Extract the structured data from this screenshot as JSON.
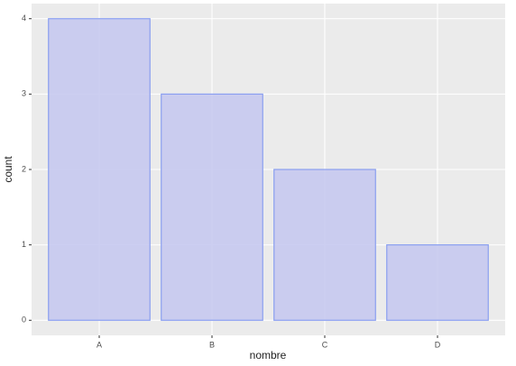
{
  "chart_data": {
    "type": "bar",
    "x_label": "nombre",
    "y_label": "count",
    "categories": [
      "A",
      "B",
      "C",
      "D"
    ],
    "values": [
      4,
      3,
      2,
      1
    ],
    "color": "#c7c9ef",
    "edge_color": "#8a9ff0",
    "ylim": [
      -0.2,
      4.2
    ],
    "yticks": [
      0,
      1,
      2,
      3,
      4
    ],
    "grid": true,
    "background": "#ebebeb"
  }
}
